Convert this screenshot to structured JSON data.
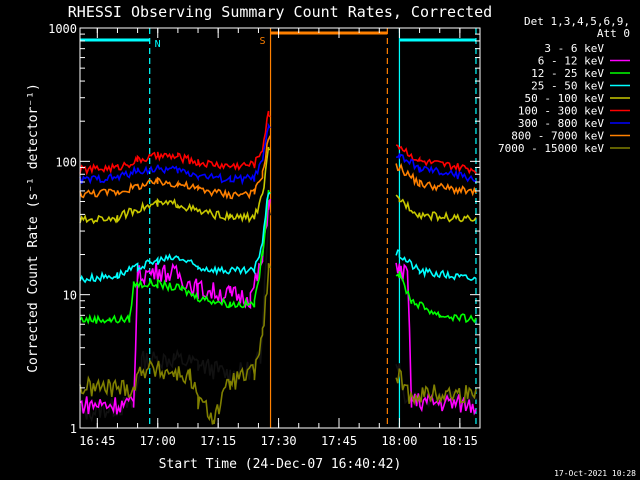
{
  "chart_data": {
    "type": "line",
    "title": "RHESSI Observing Summary Count Rates, Corrected",
    "xlabel": "Start Time (24-Dec-07 16:40:42)",
    "ylabel": "Corrected Count Rate (s⁻¹ detector⁻¹)",
    "y_scale": "log",
    "ylim": [
      1,
      1000
    ],
    "xlim": [
      "16:40:42",
      "18:20:00"
    ],
    "x_ticks": [
      "16:45",
      "17:00",
      "17:15",
      "17:30",
      "17:45",
      "18:00",
      "18:15"
    ],
    "y_ticks": [
      "1",
      "10",
      "100",
      "1000"
    ],
    "legend_title": [
      "Det 1,3,4,5,6,9,",
      "Att 0"
    ],
    "footer": "17-Oct-2021 10:28",
    "flags": [
      {
        "label": "N",
        "color": "#00ffff",
        "style": "bar",
        "x": [
          "16:40:42",
          "16:58"
        ]
      },
      {
        "label": "N",
        "color": "#00ffff",
        "style": "bar",
        "x": [
          "18:00",
          "18:19"
        ]
      },
      {
        "label": "S",
        "color": "#ff8000",
        "style": "bar",
        "x": [
          "17:28",
          "17:57"
        ]
      }
    ],
    "vlines": [
      {
        "x": "16:58",
        "color": "#00ffff",
        "dash": true
      },
      {
        "x": "17:28",
        "color": "#ff8000",
        "dash": false
      },
      {
        "x": "17:57",
        "color": "#ff8000",
        "dash": true
      },
      {
        "x": "18:00",
        "color": "#00ffff",
        "dash": false
      },
      {
        "x": "18:19",
        "color": "#00ffff",
        "dash": true
      }
    ],
    "gap": [
      "17:28",
      "17:59"
    ],
    "series": [
      {
        "name": "3 - 6 keV",
        "color": "#000000",
        "points": [
          [
            "16:40:42",
            1.3
          ],
          [
            "16:54",
            1.5
          ],
          [
            "16:56",
            3.2
          ],
          [
            "17:04",
            3.3
          ],
          [
            "17:10",
            3.0
          ],
          [
            "17:18",
            2.5
          ],
          [
            "17:24",
            2.8
          ],
          [
            "17:25:30",
            3.5
          ],
          [
            "17:26:30",
            12
          ],
          [
            "17:27:30",
            40
          ],
          [
            "18:00",
            3.0
          ],
          [
            "18:01",
            1.8
          ],
          [
            "18:19",
            1.6
          ]
        ]
      },
      {
        "name": "6 - 12 keV",
        "color": "#ff00ff",
        "points": [
          [
            "16:40:42",
            1.5
          ],
          [
            "16:54",
            1.5
          ],
          [
            "16:55",
            14
          ],
          [
            "17:00",
            15
          ],
          [
            "17:05",
            14
          ],
          [
            "17:10",
            11
          ],
          [
            "17:18",
            10
          ],
          [
            "17:23",
            9.5
          ],
          [
            "17:26",
            18
          ],
          [
            "17:27:30",
            50
          ],
          [
            "18:00",
            15
          ],
          [
            "18:02",
            14
          ],
          [
            "18:03",
            1.6
          ],
          [
            "18:19",
            1.5
          ]
        ]
      },
      {
        "name": "12 - 25 keV",
        "color": "#00ff00",
        "points": [
          [
            "16:40:42",
            6.5
          ],
          [
            "16:48",
            6.5
          ],
          [
            "16:53",
            6.5
          ],
          [
            "16:54",
            12
          ],
          [
            "17:00",
            12
          ],
          [
            "17:06",
            11
          ],
          [
            "17:10",
            9.5
          ],
          [
            "17:18",
            8.5
          ],
          [
            "17:24",
            8.5
          ],
          [
            "17:26",
            20
          ],
          [
            "17:27:30",
            60
          ],
          [
            "18:00",
            14
          ],
          [
            "18:03",
            9
          ],
          [
            "18:10",
            7
          ],
          [
            "18:19",
            6.5
          ]
        ]
      },
      {
        "name": "25 - 50 keV",
        "color": "#00ffff",
        "points": [
          [
            "16:40:42",
            13
          ],
          [
            "16:50",
            14
          ],
          [
            "16:55",
            16
          ],
          [
            "17:00",
            18
          ],
          [
            "17:05",
            19
          ],
          [
            "17:10",
            16
          ],
          [
            "17:18",
            15
          ],
          [
            "17:24",
            15
          ],
          [
            "17:26",
            25
          ],
          [
            "17:27:30",
            60
          ],
          [
            "18:00",
            20
          ],
          [
            "18:05",
            15
          ],
          [
            "18:19",
            13
          ]
        ]
      },
      {
        "name": "50 - 100 keV",
        "color": "#c8c800",
        "points": [
          [
            "16:40:42",
            36
          ],
          [
            "16:50",
            38
          ],
          [
            "16:55",
            44
          ],
          [
            "17:00",
            48
          ],
          [
            "17:05",
            48
          ],
          [
            "17:10",
            42
          ],
          [
            "17:18",
            38
          ],
          [
            "17:24",
            38
          ],
          [
            "17:26",
            55
          ],
          [
            "17:27:30",
            120
          ],
          [
            "18:00",
            52
          ],
          [
            "18:05",
            40
          ],
          [
            "18:19",
            36
          ]
        ]
      },
      {
        "name": "100 - 300 keV",
        "color": "#ff0000",
        "points": [
          [
            "16:40:42",
            86
          ],
          [
            "16:50",
            90
          ],
          [
            "16:55",
            102
          ],
          [
            "17:00",
            110
          ],
          [
            "17:05",
            108
          ],
          [
            "17:10",
            98
          ],
          [
            "17:18",
            92
          ],
          [
            "17:24",
            95
          ],
          [
            "17:26",
            125
          ],
          [
            "17:27:30",
            230
          ],
          [
            "18:00",
            130
          ],
          [
            "18:05",
            100
          ],
          [
            "18:19",
            86
          ]
        ]
      },
      {
        "name": "300 - 800 keV",
        "color": "#0000ff",
        "points": [
          [
            "16:40:42",
            72
          ],
          [
            "16:50",
            76
          ],
          [
            "16:55",
            85
          ],
          [
            "17:00",
            88
          ],
          [
            "17:05",
            86
          ],
          [
            "17:10",
            79
          ],
          [
            "17:18",
            73
          ],
          [
            "17:24",
            75
          ],
          [
            "17:26",
            100
          ],
          [
            "17:27:30",
            180
          ],
          [
            "18:00",
            110
          ],
          [
            "18:05",
            88
          ],
          [
            "18:19",
            74
          ]
        ]
      },
      {
        "name": "800 - 7000 keV",
        "color": "#ff8000",
        "points": [
          [
            "16:40:42",
            57
          ],
          [
            "16:50",
            59
          ],
          [
            "16:55",
            65
          ],
          [
            "17:00",
            70
          ],
          [
            "17:05",
            68
          ],
          [
            "17:10",
            62
          ],
          [
            "17:18",
            56
          ],
          [
            "17:24",
            58
          ],
          [
            "17:26",
            80
          ],
          [
            "17:27:30",
            150
          ],
          [
            "18:00",
            90
          ],
          [
            "18:05",
            68
          ],
          [
            "18:19",
            58
          ]
        ]
      },
      {
        "name": "7000 - 15000 keV",
        "color": "#808000",
        "points": [
          [
            "16:40:42",
            2.0
          ],
          [
            "16:54",
            2.0
          ],
          [
            "16:56",
            2.8
          ],
          [
            "17:04",
            2.6
          ],
          [
            "17:08",
            2.4
          ],
          [
            "17:10",
            1.6
          ],
          [
            "17:14",
            1.2
          ],
          [
            "17:18",
            2.2
          ],
          [
            "17:24",
            2.6
          ],
          [
            "17:26",
            5
          ],
          [
            "17:27:30",
            15
          ],
          [
            "18:00",
            2.4
          ],
          [
            "18:02",
            1.8
          ],
          [
            "18:19",
            1.8
          ]
        ]
      }
    ]
  }
}
